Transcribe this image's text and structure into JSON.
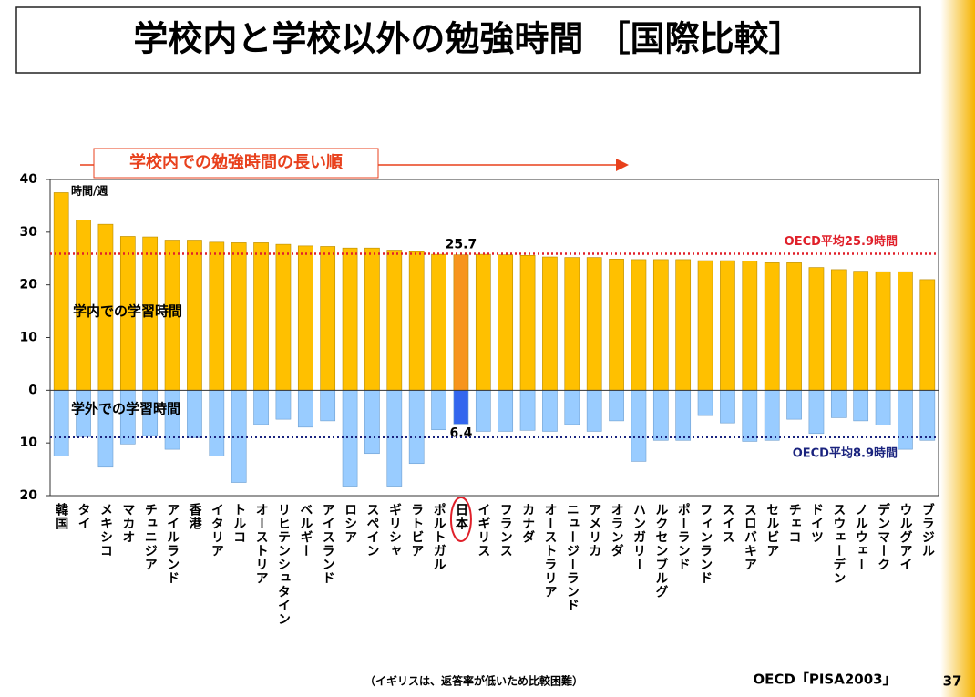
{
  "chart_data": {
    "type": "diverging_bar",
    "title": "学校内と学校以外の勉強時間 ［国際比較］",
    "order_note": "学校内での勉強時間の長い順",
    "unit_label": "時間/週",
    "categories": [
      "韓国",
      "タイ",
      "メキシコ",
      "マカオ",
      "チュニジア",
      "アイルランド",
      "香港",
      "イタリア",
      "トルコ",
      "オーストリア",
      "リヒテンシュタイン",
      "ベルギー",
      "アイスランド",
      "ロシア",
      "スペイン",
      "ギリシャ",
      "ラトビア",
      "ポルトガル",
      "日本",
      "イギリス",
      "フランス",
      "カナダ",
      "オーストラリア",
      "ニュージーランド",
      "アメリカ",
      "オランダ",
      "ハンガリー",
      "ルクセンブルグ",
      "ポーランド",
      "フィンランド",
      "スイス",
      "スロバキア",
      "セルビア",
      "チェコ",
      "ドイツ",
      "スウェーデン",
      "ノルウェー",
      "デンマーク",
      "ウルグアイ",
      "ブラジル"
    ],
    "series": [
      {
        "name": "学内での学習時間",
        "color": "#ffc000",
        "highlight_color": "#f7941d",
        "values": [
          37.5,
          32.3,
          31.5,
          29.2,
          29.1,
          28.5,
          28.5,
          28.1,
          28.0,
          28.0,
          27.7,
          27.4,
          27.3,
          27.0,
          27.0,
          26.6,
          26.3,
          25.8,
          25.7,
          25.8,
          25.7,
          25.6,
          25.3,
          25.2,
          25.2,
          24.9,
          24.8,
          24.8,
          24.8,
          24.6,
          24.6,
          24.5,
          24.2,
          24.2,
          23.3,
          22.9,
          22.6,
          22.5,
          22.5,
          21.0
        ],
        "value_labels": [
          null,
          null,
          null,
          null,
          null,
          null,
          null,
          null,
          null,
          null,
          null,
          null,
          null,
          null,
          null,
          null,
          null,
          null,
          "25.7",
          null,
          null,
          null,
          null,
          null,
          null,
          null,
          null,
          null,
          null,
          null,
          null,
          null,
          null,
          null,
          null,
          null,
          null,
          null,
          null,
          null
        ]
      },
      {
        "name": "学外での学習時間",
        "color": "#99ccff",
        "highlight_color": "#3366ee",
        "values": [
          -12.5,
          -8.8,
          -14.6,
          -10.2,
          -8.6,
          -11.2,
          -9.0,
          -12.5,
          -17.5,
          -6.5,
          -5.5,
          -7.0,
          -5.8,
          -18.2,
          -12.0,
          -18.2,
          -13.9,
          -7.5,
          -6.4,
          -7.8,
          -7.8,
          -7.6,
          -7.8,
          -6.5,
          -7.8,
          -5.8,
          -13.5,
          -9.5,
          -9.5,
          -4.8,
          -6.2,
          -9.7,
          -9.5,
          -5.5,
          -8.2,
          -5.2,
          -5.8,
          -6.6,
          -11.2,
          -9.5
        ],
        "value_labels": [
          null,
          null,
          null,
          null,
          null,
          null,
          null,
          null,
          null,
          null,
          null,
          null,
          null,
          null,
          null,
          null,
          null,
          null,
          "6.4",
          null,
          null,
          null,
          null,
          null,
          null,
          null,
          null,
          null,
          null,
          null,
          null,
          null,
          null,
          null,
          null,
          null,
          null,
          null,
          null,
          null
        ]
      }
    ],
    "highlight_index": 18,
    "reference_lines": [
      {
        "value": 25.9,
        "label": "OECD平均25.9時間",
        "color": "#e0202a"
      },
      {
        "value": -8.9,
        "label": "OECD平均8.9時間",
        "color": "#1a237e"
      }
    ],
    "ylim": [
      -20,
      40
    ],
    "yticks": [
      40,
      30,
      20,
      10,
      0,
      {
        "value": -10,
        "label": "10"
      },
      {
        "value": -20,
        "label": "20"
      }
    ],
    "grid": false,
    "footnote": "（イギリスは、返答率が低いため比較困難）",
    "source": "OECD「PISA2003」",
    "page_number": "37"
  }
}
